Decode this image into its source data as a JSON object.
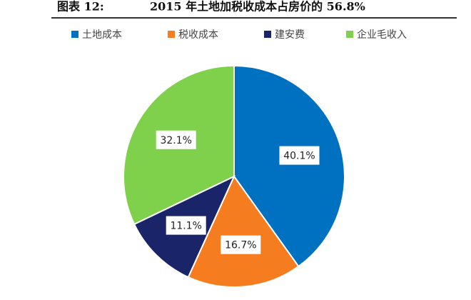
{
  "chart_data": {
    "type": "pie",
    "label": "图表 12:",
    "title": "2015 年土地加税收成本占房价的 56.8%",
    "categories": [
      "土地成本",
      "税收成本",
      "建安费",
      "企业毛收入"
    ],
    "values": [
      40.1,
      16.7,
      11.1,
      32.1
    ],
    "value_labels": [
      "40.1%",
      "16.7%",
      "11.1%",
      "32.1%"
    ],
    "colors": [
      "#0070c0",
      "#f57c1f",
      "#1a2468",
      "#7fd14c"
    ],
    "legend": "top"
  }
}
